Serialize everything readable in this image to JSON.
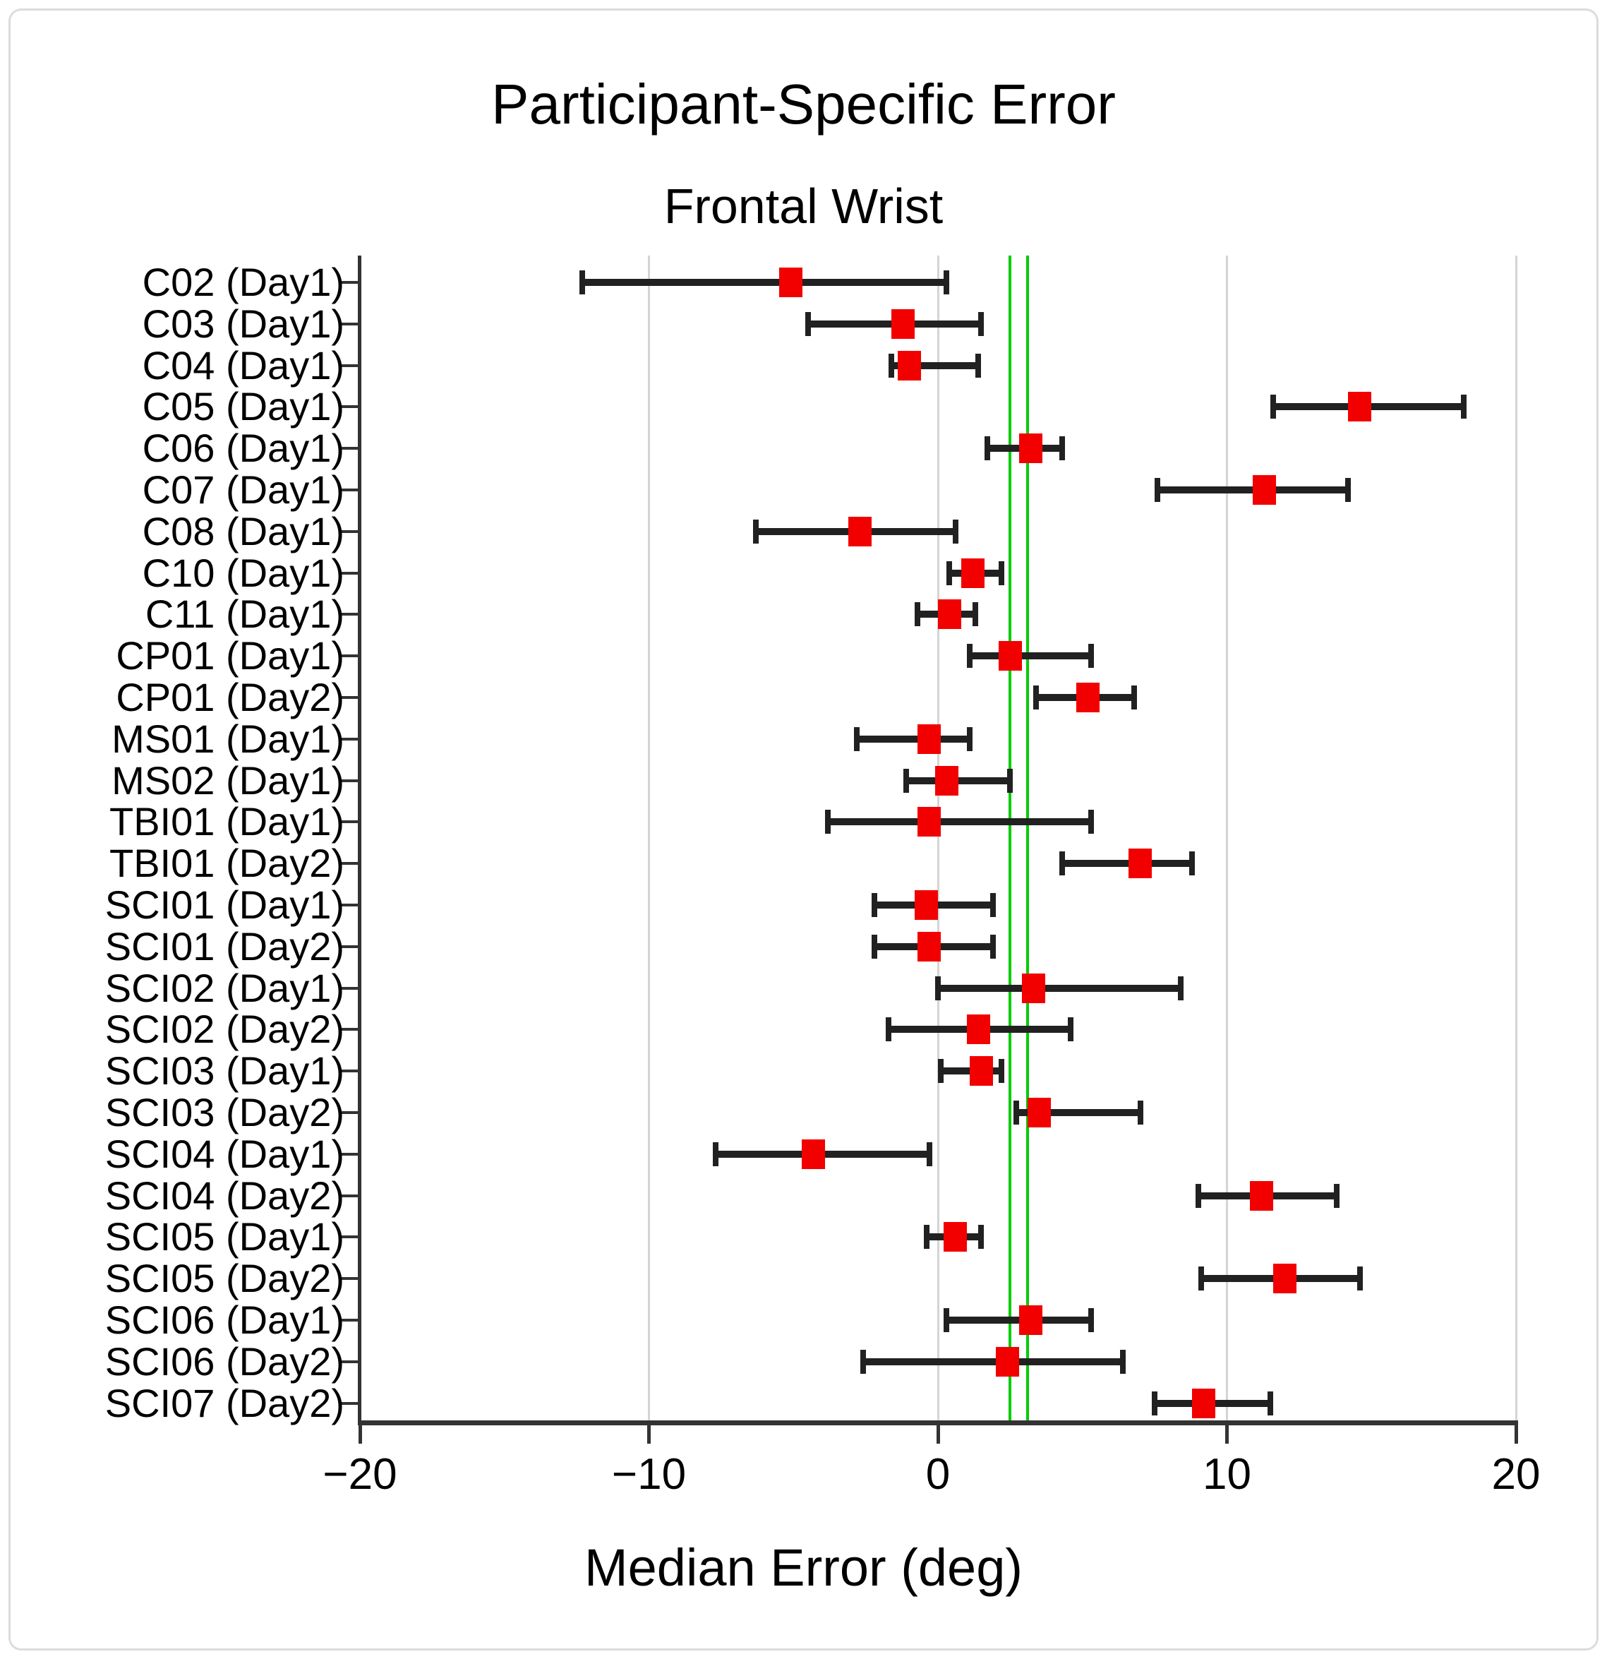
{
  "figure": {
    "title": "Participant-Specific Error",
    "subtitle": "Frontal Wrist",
    "xlabel": "Median Error (deg)"
  },
  "colors": {
    "marker": "#f20000",
    "error_bar": "#212121",
    "axis": "#333333",
    "gridline": "#d4d4d4",
    "reference_line": "#00cc00",
    "background": "#ffffff",
    "text": "#000000"
  },
  "chart_data": {
    "type": "scatter",
    "orientation": "horizontal_error_bars",
    "title": "Participant-Specific Error",
    "subtitle": "Frontal Wrist",
    "xlabel": "Median Error (deg)",
    "xlim": [
      -20,
      20
    ],
    "xticks": [
      -20,
      -10,
      0,
      10,
      20
    ],
    "xtick_labels": [
      "−20",
      "−10",
      "0",
      "10",
      "20"
    ],
    "gridlines_x": [
      -10,
      0,
      10,
      20
    ],
    "reference_lines_x": [
      2.5,
      3.1
    ],
    "grid": true,
    "legend": "none",
    "marker": "square",
    "categories": [
      "C02 (Day1)",
      "C03 (Day1)",
      "C04 (Day1)",
      "C05 (Day1)",
      "C06 (Day1)",
      "C07 (Day1)",
      "C08 (Day1)",
      "C10 (Day1)",
      "C11 (Day1)",
      "CP01 (Day1)",
      "CP01 (Day2)",
      "MS01 (Day1)",
      "MS02 (Day1)",
      "TBI01 (Day1)",
      "TBI01 (Day2)",
      "SCI01 (Day1)",
      "SCI01 (Day2)",
      "SCI02 (Day1)",
      "SCI02 (Day2)",
      "SCI03 (Day1)",
      "SCI03 (Day2)",
      "SCI04 (Day1)",
      "SCI04 (Day2)",
      "SCI05 (Day1)",
      "SCI05 (Day2)",
      "SCI06 (Day1)",
      "SCI06 (Day2)",
      "SCI07 (Day2)"
    ],
    "values": [
      -5.1,
      -1.2,
      -1.0,
      14.6,
      3.2,
      11.3,
      -2.7,
      1.2,
      0.4,
      2.5,
      5.2,
      -0.3,
      0.3,
      -0.3,
      7.0,
      -0.4,
      -0.3,
      3.3,
      1.4,
      1.5,
      3.5,
      -4.3,
      11.2,
      0.6,
      12.0,
      3.2,
      2.4,
      9.2
    ],
    "error_low": [
      -12.3,
      -4.5,
      -1.6,
      11.6,
      1.7,
      7.6,
      -6.3,
      0.4,
      -0.7,
      1.1,
      3.4,
      -2.8,
      -1.1,
      -3.8,
      4.3,
      -2.2,
      -2.2,
      0.0,
      -1.7,
      0.1,
      2.7,
      -7.7,
      9.0,
      -0.4,
      9.1,
      0.3,
      -2.6,
      7.5
    ],
    "error_high": [
      0.3,
      1.5,
      1.4,
      18.2,
      4.3,
      14.2,
      0.6,
      2.2,
      1.3,
      5.3,
      6.8,
      1.1,
      2.5,
      5.3,
      8.8,
      1.9,
      1.9,
      8.4,
      4.6,
      2.2,
      7.0,
      -0.3,
      13.8,
      1.5,
      14.6,
      5.3,
      6.4,
      11.5
    ]
  }
}
